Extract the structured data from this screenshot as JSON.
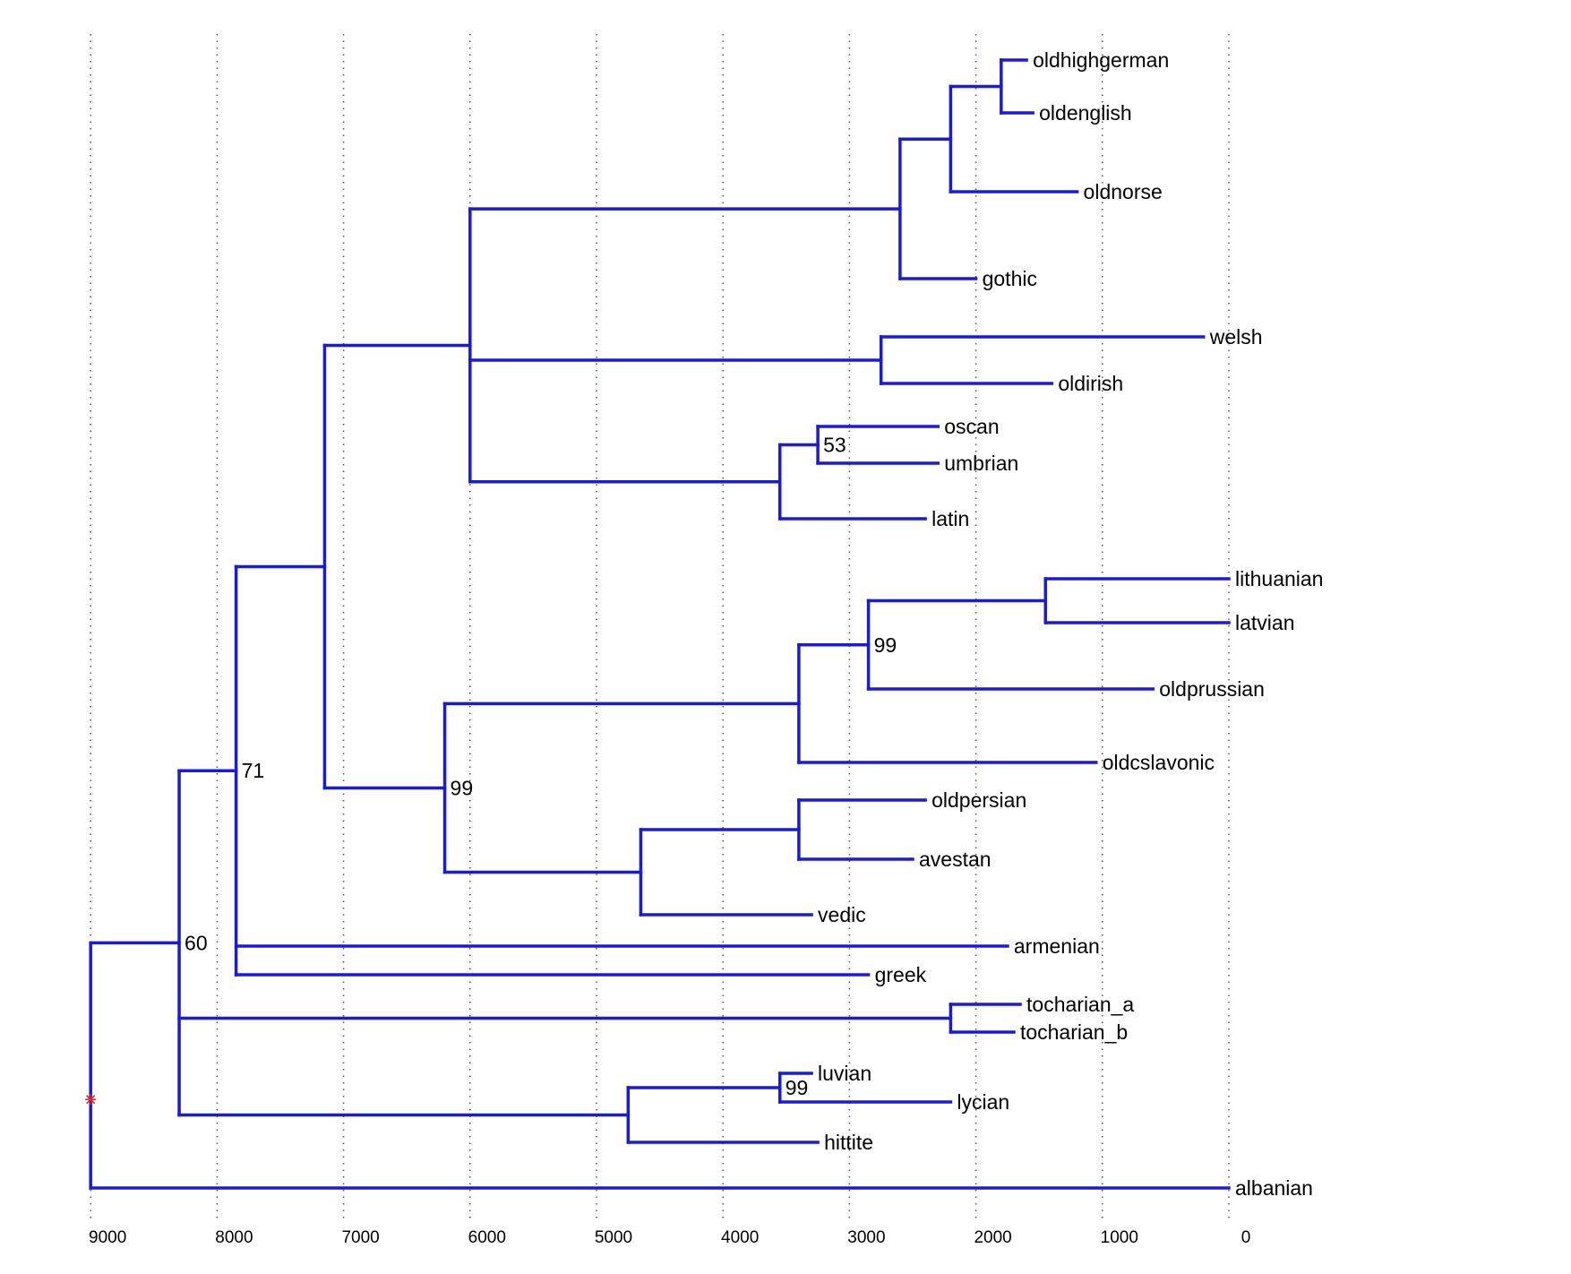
{
  "tree": {
    "label": "root",
    "age": 9000,
    "children": [
      {
        "label": "60",
        "age": 8300,
        "children": [
          {
            "label": "71",
            "age": 7850,
            "children": [
              {
                "label": "",
                "age": 7150,
                "children": [
                  {
                    "label": "",
                    "age": 6000,
                    "children": [
                      {
                        "label": "",
                        "age": 2600,
                        "children": [
                          {
                            "label": "",
                            "age": 2200,
                            "children": [
                              {
                                "label": "",
                                "age": 1800,
                                "children": [
                                  {
                                    "name": "oldhighgerman",
                                    "age": 1600
                                  },
                                  {
                                    "name": "oldenglish",
                                    "age": 1550
                                  }
                                ]
                              },
                              {
                                "name": "oldnorse",
                                "age": 1200
                              }
                            ]
                          },
                          {
                            "name": "gothic",
                            "age": 2000
                          }
                        ]
                      },
                      {
                        "label": "",
                        "age": 2750,
                        "children": [
                          {
                            "name": "welsh",
                            "age": 200
                          },
                          {
                            "name": "oldirish",
                            "age": 1400
                          }
                        ]
                      },
                      {
                        "label": "",
                        "age": 3550,
                        "children": [
                          {
                            "label": "53",
                            "age": 3250,
                            "children": [
                              {
                                "name": "oscan",
                                "age": 2300
                              },
                              {
                                "name": "umbrian",
                                "age": 2300
                              }
                            ]
                          },
                          {
                            "name": "latin",
                            "age": 2400
                          }
                        ]
                      }
                    ]
                  },
                  {
                    "label": "99",
                    "age": 6200,
                    "children": [
                      {
                        "label": "",
                        "age": 3400,
                        "children": [
                          {
                            "label": "99",
                            "age": 2850,
                            "children": [
                              {
                                "label": "",
                                "age": 1450,
                                "children": [
                                  {
                                    "name": "lithuanian",
                                    "age": 0
                                  },
                                  {
                                    "name": "latvian",
                                    "age": 0
                                  }
                                ]
                              },
                              {
                                "name": "oldprussian",
                                "age": 600
                              }
                            ]
                          },
                          {
                            "name": "oldcslavonic",
                            "age": 1050
                          }
                        ]
                      },
                      {
                        "label": "",
                        "age": 4650,
                        "children": [
                          {
                            "label": "",
                            "age": 3400,
                            "children": [
                              {
                                "name": "oldpersian",
                                "age": 2400
                              },
                              {
                                "name": "avestan",
                                "age": 2500
                              }
                            ]
                          },
                          {
                            "name": "vedic",
                            "age": 3300
                          }
                        ]
                      }
                    ]
                  }
                ]
              },
              {
                "name": "armenian",
                "age": 1750
              },
              {
                "name": "greek",
                "age": 2850
              }
            ]
          },
          {
            "label": "",
            "age": 2200,
            "children": [
              {
                "name": "tocharian_a",
                "age": 1650
              },
              {
                "name": "tocharian_b",
                "age": 1700
              }
            ]
          },
          {
            "label": "",
            "age": 4750,
            "children": [
              {
                "label": "99",
                "age": 3550,
                "children": [
                  {
                    "name": "luvian",
                    "age": 3300
                  },
                  {
                    "name": "lycian",
                    "age": 2200
                  }
                ]
              },
              {
                "name": "hittite",
                "age": 3250
              }
            ]
          }
        ]
      },
      {
        "name": "albanian",
        "age": 0
      }
    ]
  },
  "axis": {
    "ticks": [
      9000,
      8000,
      7000,
      6000,
      5000,
      4000,
      3000,
      2000,
      1000,
      0
    ],
    "grid": "dotted-vertical"
  },
  "colors": {
    "branch": "#1a1adb",
    "root_marker": "#e02020",
    "text": "#000000",
    "grid": "#555555"
  },
  "root_marker_icon": "asterisk-root-marker"
}
